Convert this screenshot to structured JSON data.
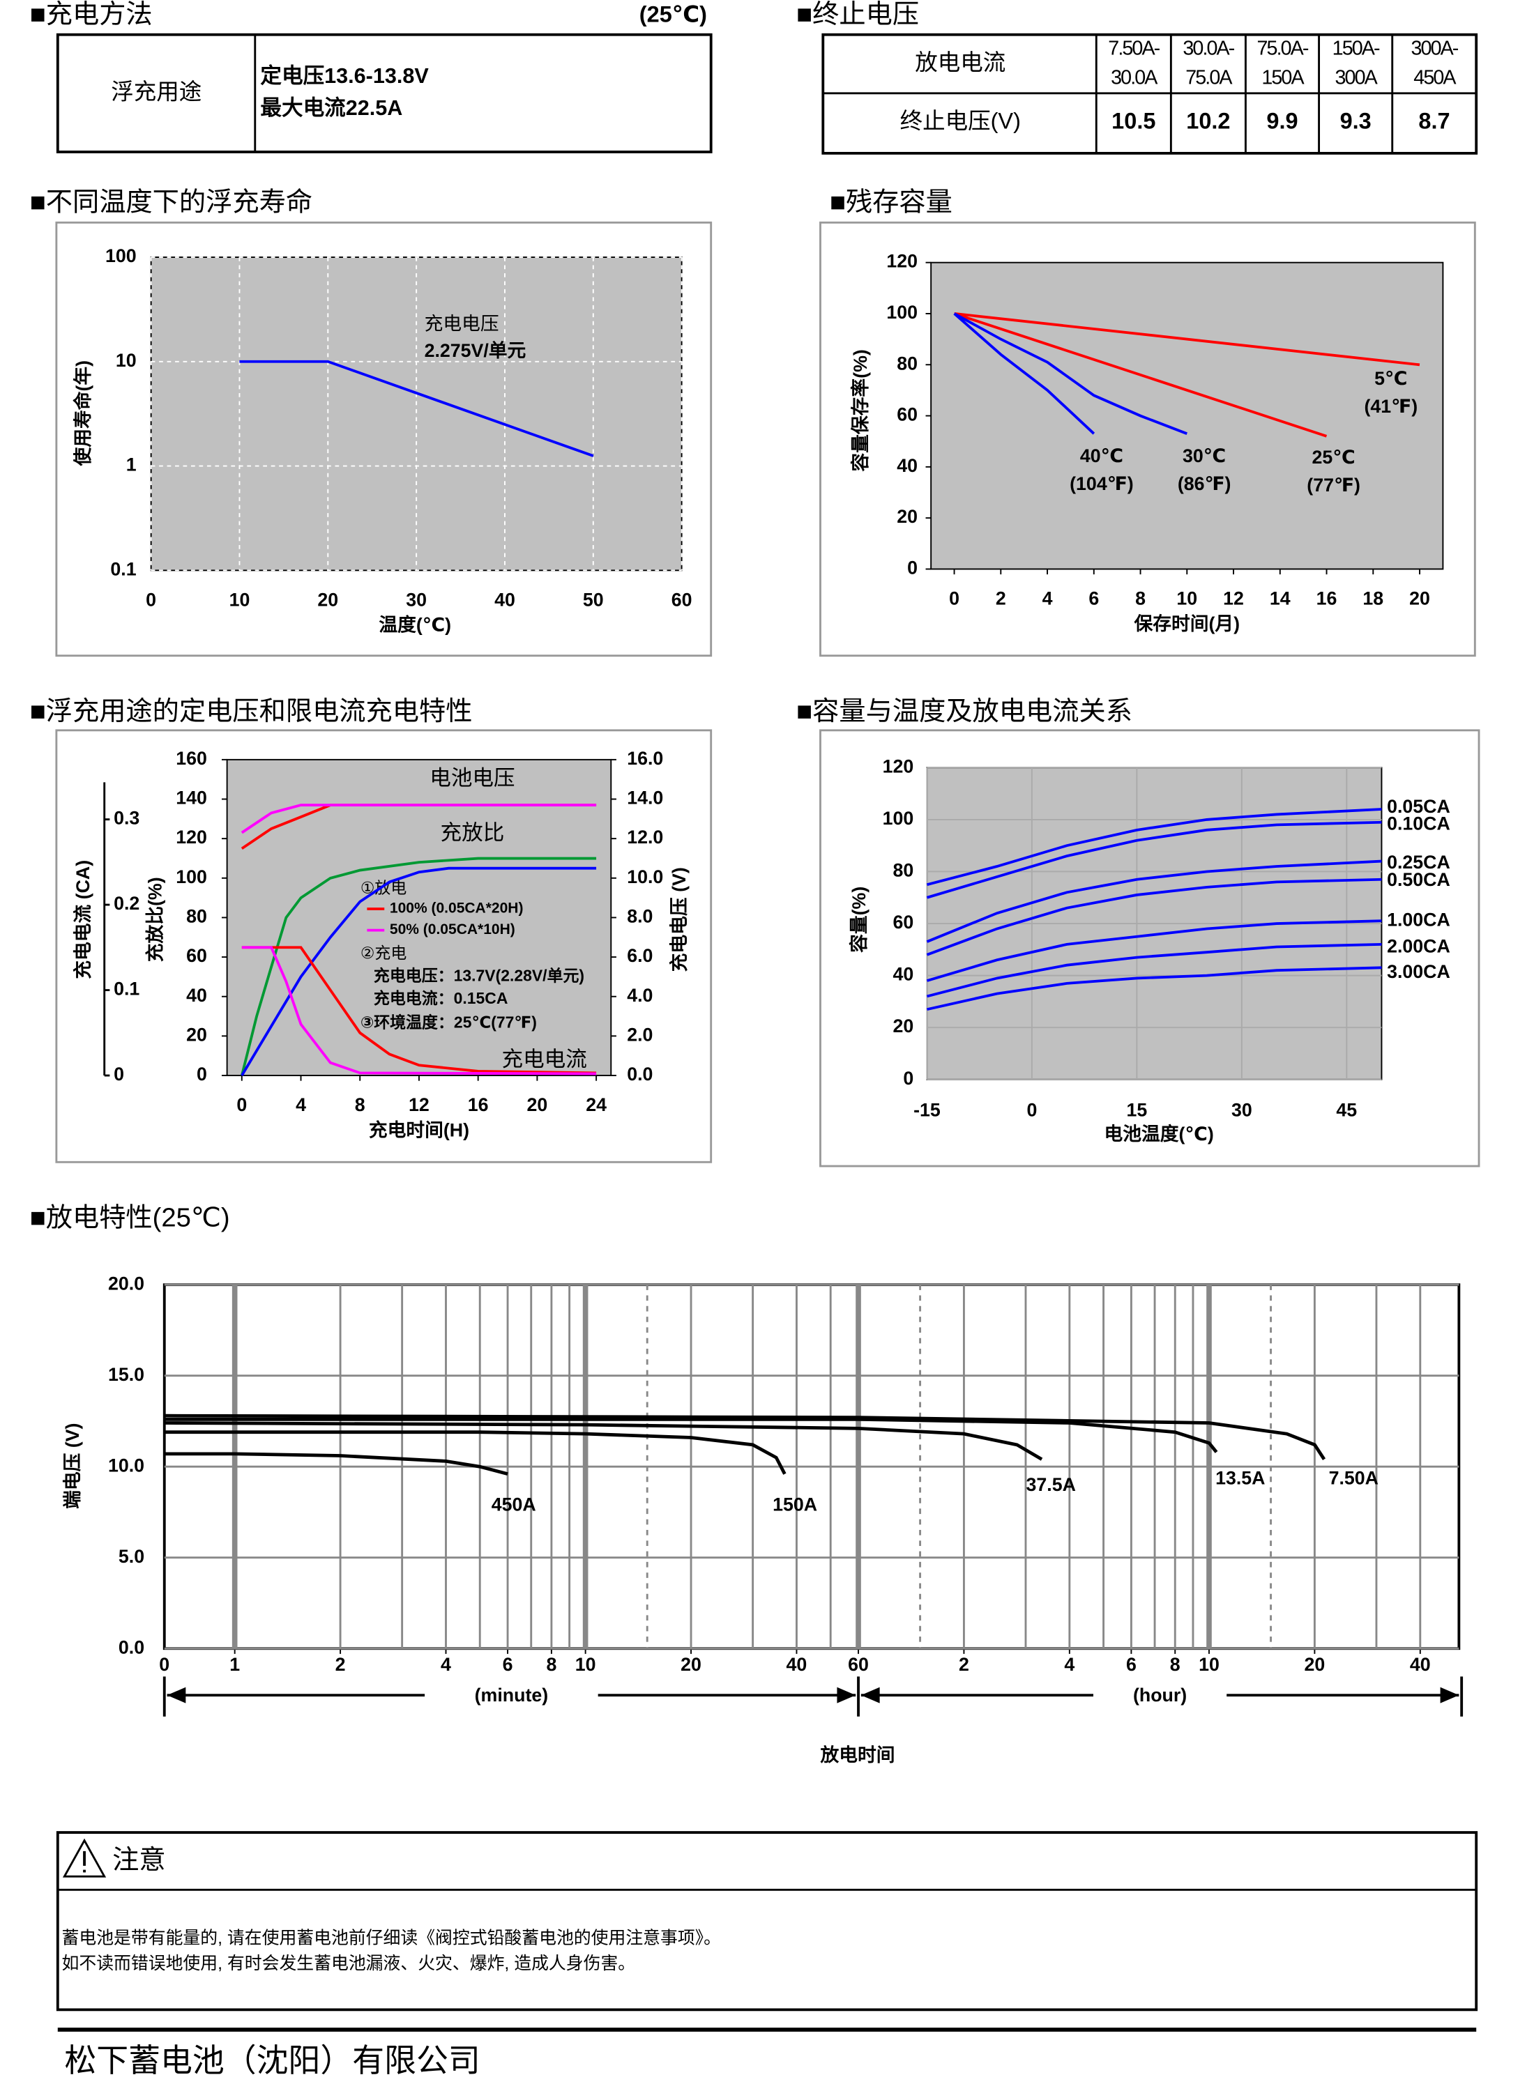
{
  "charging": {
    "title": "■充电方法",
    "condition": "(25℃)",
    "row_label": "浮充用途",
    "lines": [
      "定电压13.6-13.8V",
      "最大电流22.5A"
    ]
  },
  "cutoff": {
    "title": "■终止电压",
    "header_label": "放电电流",
    "currents": [
      [
        "7.50A-",
        "30.0A"
      ],
      [
        "30.0A-",
        "75.0A"
      ],
      [
        "75.0A-",
        "150A"
      ],
      [
        "150A-",
        "300A"
      ],
      [
        "300A-",
        "450A"
      ]
    ],
    "row_label": "终止电压(V)",
    "voltages": [
      10.5,
      10.2,
      9.9,
      9.3,
      8.7
    ]
  },
  "chart_data": [
    {
      "type": "line",
      "title": "■不同温度下的浮充寿命",
      "xlabel": "温度(℃)",
      "ylabel": "使用寿命(年)",
      "log_y": true,
      "grid": true,
      "background": "#c0c0c0",
      "xlim": [
        0,
        60
      ],
      "xticks": [
        0,
        10,
        20,
        30,
        40,
        50,
        60
      ],
      "ylim": [
        0.1,
        100
      ],
      "yticks": [
        0.1,
        1,
        10,
        100
      ],
      "annotations": [
        "充电电压",
        "2.275V/单元"
      ],
      "series": [
        {
          "color": "#0000ff",
          "x": [
            10,
            20,
            50
          ],
          "values": [
            10,
            10,
            1.25
          ]
        }
      ]
    },
    {
      "type": "line",
      "title": "■残存容量",
      "xlabel": "保存时间(月)",
      "ylabel": "容量保存率(%)",
      "grid": false,
      "background": "#c0c0c0",
      "xlim": [
        -1,
        21
      ],
      "xticks": [
        0,
        2,
        4,
        6,
        8,
        10,
        12,
        14,
        16,
        18,
        20
      ],
      "ylim": [
        0,
        120
      ],
      "yticks": [
        0,
        20,
        40,
        60,
        80,
        100,
        120
      ],
      "series": [
        {
          "name": "5℃",
          "sub": "(41℉)",
          "color": "#ff0000",
          "x": [
            0,
            20
          ],
          "values": [
            100,
            80
          ]
        },
        {
          "name": "25℃",
          "sub": "(77℉)",
          "color": "#ff0000",
          "x": [
            0,
            16
          ],
          "values": [
            100,
            52
          ]
        },
        {
          "name": "30℃",
          "sub": "(86℉)",
          "color": "#0000ff",
          "x": [
            0,
            2,
            4,
            6,
            8,
            10
          ],
          "values": [
            100,
            90,
            81,
            68,
            60,
            53
          ]
        },
        {
          "name": "40℃",
          "sub": "(104℉)",
          "color": "#0000ff",
          "x": [
            0,
            2,
            4,
            6
          ],
          "values": [
            100,
            84,
            70,
            53
          ]
        }
      ]
    },
    {
      "type": "line",
      "title": "■浮充用途的定电压和限电流充电特性",
      "xlabel": "充电时间(H)",
      "ylabel": "充放比(%)",
      "y2label": "充电电压 (V)",
      "y3label": "充电电流 (CA)",
      "grid": false,
      "background": "#c0c0c0",
      "xlim": [
        -1,
        25
      ],
      "xticks": [
        0,
        4,
        8,
        12,
        16,
        20,
        24
      ],
      "ylim": [
        0,
        160
      ],
      "yticks": [
        0,
        20,
        40,
        60,
        80,
        100,
        120,
        140,
        160
      ],
      "y2lim": [
        0,
        16
      ],
      "y2ticks": [
        {
          "value": 0,
          "label": "0.0"
        },
        {
          "value": 2,
          "label": "2.0"
        },
        {
          "value": 4,
          "label": "4.0"
        },
        {
          "value": 6,
          "label": "6.0"
        },
        {
          "value": 8,
          "label": "8.0"
        },
        {
          "value": 10,
          "label": "10.0"
        },
        {
          "value": 12,
          "label": "12.0"
        },
        {
          "value": 14,
          "label": "14.0"
        },
        {
          "value": 16,
          "label": "16.0"
        }
      ],
      "y3lim": [
        0,
        0.37
      ],
      "y3ticks": [
        0,
        0.1,
        0.2,
        0.3
      ],
      "annotations": [
        "电池电压",
        "充放比",
        "充电电流"
      ],
      "notes": [
        "①放电",
        "②充电",
        "充电电压：13.7V(2.28V/单元)",
        "充电电流：0.15CA",
        "③环境温度：25℃(77℉)"
      ],
      "series": [
        {
          "name": "100% (0.05CA*20H)",
          "color": "#ff0000",
          "axis": "y2",
          "x": [
            0,
            2,
            4,
            6,
            24
          ],
          "values": [
            11.5,
            12.5,
            13.1,
            13.7,
            13.7
          ]
        },
        {
          "name": "50% (0.05CA*10H)",
          "color": "#ff00ff",
          "axis": "y2",
          "x": [
            0,
            2,
            4,
            24
          ],
          "values": [
            12.3,
            13.3,
            13.7,
            13.7
          ]
        },
        {
          "color": "#009933",
          "x": [
            0,
            1,
            2,
            3,
            4,
            6,
            8,
            12,
            16,
            24
          ],
          "values": [
            0,
            30,
            55,
            80,
            90,
            100,
            104,
            108,
            110,
            110
          ]
        },
        {
          "color": "#0000ff",
          "x": [
            0,
            2,
            4,
            6,
            8,
            10,
            12,
            14,
            24
          ],
          "values": [
            0,
            25,
            50,
            70,
            88,
            98,
            103,
            105,
            105
          ]
        },
        {
          "color": "#ff0000",
          "axis": "y3",
          "x": [
            0,
            4,
            6,
            8,
            10,
            12,
            16,
            24
          ],
          "values": [
            0.15,
            0.15,
            0.1,
            0.05,
            0.025,
            0.012,
            0.005,
            0.003
          ]
        },
        {
          "color": "#ff00ff",
          "axis": "y3",
          "x": [
            0,
            2,
            3,
            4,
            6,
            8,
            24
          ],
          "values": [
            0.15,
            0.15,
            0.11,
            0.06,
            0.015,
            0.003,
            0.002
          ]
        }
      ]
    },
    {
      "type": "line",
      "title": "■容量与温度及放电电流关系",
      "xlabel": "电池温度(℃)",
      "ylabel": "容量(%)",
      "grid": true,
      "background": "#c0c0c0",
      "xlim": [
        -15,
        50
      ],
      "xticks": [
        -15,
        0,
        15,
        30,
        45
      ],
      "ylim": [
        0,
        120
      ],
      "yticks": [
        0,
        20,
        40,
        60,
        80,
        100,
        120
      ],
      "series": [
        {
          "name": "0.05CA",
          "color": "#0000ff",
          "x": [
            -15,
            -5,
            5,
            15,
            25,
            35,
            50
          ],
          "values": [
            75,
            82,
            90,
            96,
            100,
            102,
            104
          ]
        },
        {
          "name": "0.10CA",
          "color": "#0000ff",
          "x": [
            -15,
            -5,
            5,
            15,
            25,
            35,
            50
          ],
          "values": [
            70,
            78,
            86,
            92,
            96,
            98,
            99
          ]
        },
        {
          "name": "0.25CA",
          "color": "#0000ff",
          "x": [
            -15,
            -5,
            5,
            15,
            25,
            35,
            50
          ],
          "values": [
            53,
            64,
            72,
            77,
            80,
            82,
            84
          ]
        },
        {
          "name": "0.50CA",
          "color": "#0000ff",
          "x": [
            -15,
            -5,
            5,
            15,
            25,
            35,
            50
          ],
          "values": [
            48,
            58,
            66,
            71,
            74,
            76,
            77
          ]
        },
        {
          "name": "1.00CA",
          "color": "#0000ff",
          "x": [
            -15,
            -5,
            5,
            15,
            25,
            35,
            50
          ],
          "values": [
            38,
            46,
            52,
            55,
            58,
            60,
            61
          ]
        },
        {
          "name": "2.00CA",
          "color": "#0000ff",
          "x": [
            -15,
            -5,
            5,
            15,
            25,
            35,
            50
          ],
          "values": [
            32,
            39,
            44,
            47,
            49,
            51,
            52
          ]
        },
        {
          "name": "3.00CA",
          "color": "#0000ff",
          "x": [
            -15,
            -5,
            5,
            15,
            25,
            35,
            50
          ],
          "values": [
            27,
            33,
            37,
            39,
            40,
            42,
            43
          ]
        }
      ]
    },
    {
      "type": "line",
      "title": "■放电特性(25℃)",
      "xlabel": "放电时间",
      "ylabel": "端电压 (V)",
      "log_x": true,
      "grid": true,
      "background": "#ffffff",
      "x_origin_label": "0",
      "x_unit_labels": [
        "(minute)",
        "(hour)"
      ],
      "xlim": [
        0.63,
        3095
      ],
      "xticks": [
        1,
        2,
        4,
        6,
        8,
        10,
        20,
        40,
        60,
        {
          "value": 120,
          "label": "2"
        },
        {
          "value": 240,
          "label": "4"
        },
        {
          "value": 360,
          "label": "6"
        },
        {
          "value": 480,
          "label": "8"
        },
        {
          "value": 600,
          "label": "10"
        },
        {
          "value": 1200,
          "label": "20"
        },
        {
          "value": 2400,
          "label": "40"
        }
      ],
      "xgrid": [
        2,
        3,
        4,
        5,
        6,
        7,
        8,
        9,
        20,
        30,
        40,
        50,
        120,
        180,
        240,
        300,
        360,
        420,
        480,
        540,
        1200,
        1800,
        2400
      ],
      "xgrid_major": [
        1,
        10,
        60,
        600
      ],
      "xgrid_dashed": [
        15,
        90,
        900
      ],
      "ylim": [
        0,
        20
      ],
      "yticks": [
        {
          "value": 0,
          "label": "0.0"
        },
        {
          "value": 5,
          "label": "5.0"
        },
        {
          "value": 10,
          "label": "10.0"
        },
        {
          "value": 15,
          "label": "15.0"
        },
        {
          "value": 20,
          "label": "20.0"
        }
      ],
      "series": [
        {
          "name": "450A",
          "color": "#000000",
          "x": [
            0.63,
            1,
            2,
            4,
            5,
            6
          ],
          "values": [
            10.7,
            10.7,
            10.6,
            10.3,
            10,
            9.6
          ]
        },
        {
          "name": "150A",
          "color": "#000000",
          "x": [
            0.63,
            5,
            10,
            20,
            30,
            35,
            37
          ],
          "values": [
            11.9,
            11.9,
            11.8,
            11.6,
            11.2,
            10.5,
            9.6
          ]
        },
        {
          "name": "37.5A",
          "color": "#000000",
          "x": [
            0.63,
            10,
            60,
            120,
            170,
            200
          ],
          "values": [
            12.4,
            12.3,
            12.1,
            11.8,
            11.2,
            10.4
          ]
        },
        {
          "name": "13.5A",
          "color": "#000000",
          "x": [
            0.63,
            60,
            240,
            480,
            600,
            630
          ],
          "values": [
            12.6,
            12.6,
            12.4,
            11.9,
            11.3,
            10.8
          ]
        },
        {
          "name": "7.50A",
          "color": "#000000",
          "x": [
            0.63,
            60,
            600,
            1000,
            1200,
            1277
          ],
          "values": [
            12.8,
            12.7,
            12.4,
            11.8,
            11.2,
            10.4
          ]
        }
      ]
    }
  ],
  "notice": {
    "title": "注意",
    "lines": [
      "蓄电池是带有能量的, 请在使用蓄电池前仔细读《阀控式铅酸蓄电池的使用注意事项》。",
      "如不读而错误地使用, 有时会发生蓄电池漏液、火灾、爆炸, 造成人身伤害。"
    ]
  },
  "footer": "松下蓄电池（沈阳）有限公司"
}
